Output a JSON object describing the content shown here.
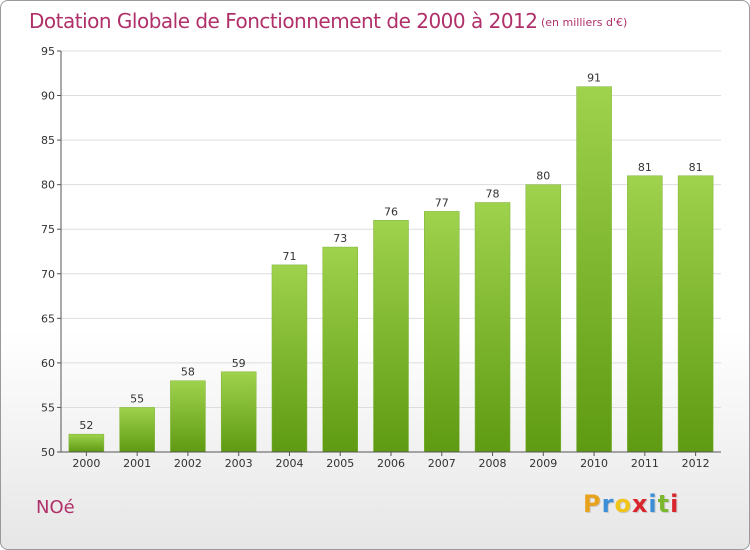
{
  "title": "Dotation Globale de Fonctionnement de 2000 à 2012",
  "subtitle": "(en milliers d'€)",
  "commune": "NOé",
  "logo": {
    "letters": [
      "P",
      "r",
      "o",
      "x",
      "i",
      "t",
      "i"
    ],
    "colors": [
      "#e8a21c",
      "#3c8fd6",
      "#f0c419",
      "#d9262c",
      "#3c8fd6",
      "#7cb82f",
      "#d9262c"
    ]
  },
  "colors": {
    "title": "#b0306a",
    "bar_top": "#9fd24d",
    "bar_bottom": "#5e9a12",
    "axis": "#555555",
    "grid": "#dddddd"
  },
  "chart_data": {
    "type": "bar",
    "title": "Dotation Globale de Fonctionnement de 2000 à 2012",
    "subtitle": "(en milliers d'€)",
    "categories": [
      "2000",
      "2001",
      "2002",
      "2003",
      "2004",
      "2005",
      "2006",
      "2007",
      "2008",
      "2009",
      "2010",
      "2011",
      "2012"
    ],
    "values": [
      52,
      55,
      58,
      59,
      71,
      73,
      76,
      77,
      78,
      80,
      91,
      81,
      81
    ],
    "ylim": [
      50,
      95
    ],
    "yticks": [
      50,
      55,
      60,
      65,
      70,
      75,
      80,
      85,
      90,
      95
    ],
    "grid": true,
    "legend": "none"
  }
}
